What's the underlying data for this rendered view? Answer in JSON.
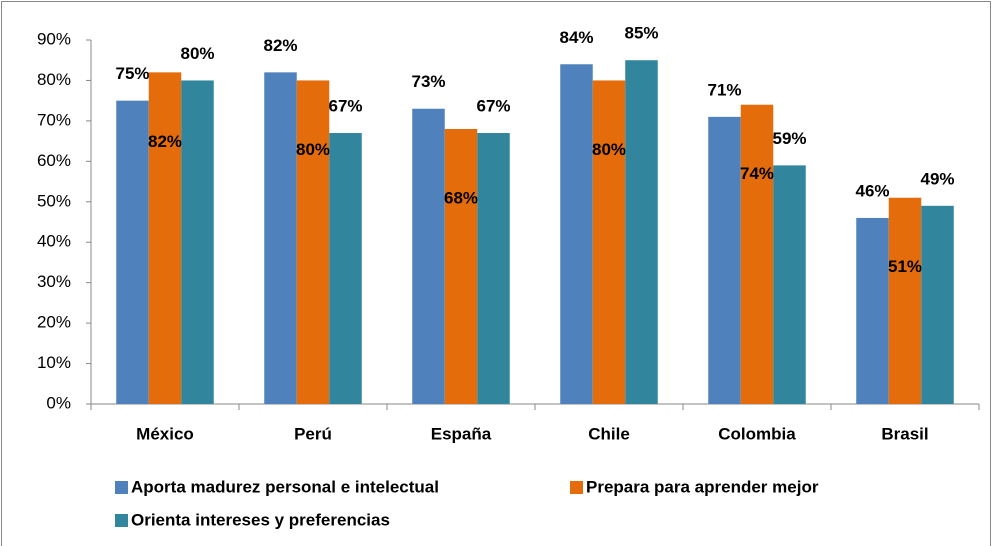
{
  "chart_data": {
    "type": "bar",
    "categories": [
      "México",
      "Perú",
      "España",
      "Chile",
      "Colombia",
      "Brasil"
    ],
    "series": [
      {
        "name": "Aporta madurez personal e intelectual",
        "color": "#4f81bd",
        "values": [
          75,
          82,
          73,
          84,
          71,
          46
        ],
        "value_labels": [
          "75%",
          "82%",
          "73%",
          "84%",
          "71%",
          "46%"
        ]
      },
      {
        "name": "Prepara para aprender mejor",
        "color": "#e46c0a",
        "values": [
          82,
          80,
          68,
          80,
          74,
          51
        ],
        "value_labels": [
          "82%",
          "80%",
          "68%",
          "80%",
          "74%",
          "51%"
        ]
      },
      {
        "name": "Orienta intereses y preferencias",
        "color": "#31859c",
        "values": [
          80,
          67,
          67,
          85,
          59,
          49
        ],
        "value_labels": [
          "80%",
          "67%",
          "67%",
          "85%",
          "59%",
          "49%"
        ]
      }
    ],
    "ylim": [
      0,
      90
    ],
    "yticks": [
      {
        "value": 0,
        "label": "0%"
      },
      {
        "value": 10,
        "label": "10%"
      },
      {
        "value": 20,
        "label": "20%"
      },
      {
        "value": 30,
        "label": "30%"
      },
      {
        "value": 40,
        "label": "40%"
      },
      {
        "value": 50,
        "label": "50%"
      },
      {
        "value": 60,
        "label": "60%"
      },
      {
        "value": 70,
        "label": "70%"
      },
      {
        "value": 80,
        "label": "80%"
      },
      {
        "value": 90,
        "label": "90%"
      }
    ],
    "legend": "bottom"
  }
}
